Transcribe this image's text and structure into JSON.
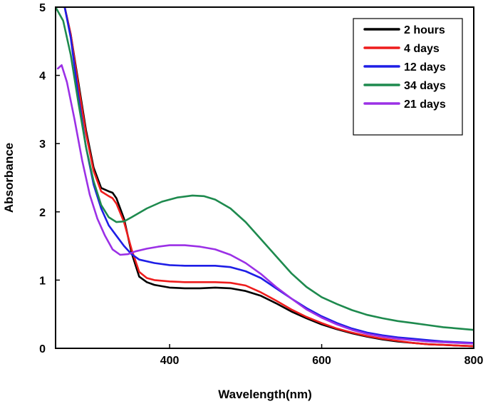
{
  "chart_data": {
    "type": "line",
    "title": "",
    "xlabel": "Wavelength(nm)",
    "ylabel": "Absorbance",
    "xlim": [
      250,
      800
    ],
    "ylim": [
      0,
      5
    ],
    "xticks": [
      400,
      600,
      800
    ],
    "yticks": [
      0,
      1,
      2,
      3,
      4,
      5
    ],
    "legend_position": "top-right",
    "series": [
      {
        "name": "2 hours",
        "color": "#000000",
        "points": [
          [
            262,
            5.0
          ],
          [
            270,
            4.6
          ],
          [
            280,
            3.9
          ],
          [
            290,
            3.2
          ],
          [
            300,
            2.65
          ],
          [
            310,
            2.35
          ],
          [
            320,
            2.3
          ],
          [
            325,
            2.28
          ],
          [
            330,
            2.2
          ],
          [
            340,
            1.9
          ],
          [
            350,
            1.4
          ],
          [
            360,
            1.05
          ],
          [
            370,
            0.97
          ],
          [
            380,
            0.93
          ],
          [
            400,
            0.89
          ],
          [
            420,
            0.88
          ],
          [
            440,
            0.88
          ],
          [
            460,
            0.89
          ],
          [
            480,
            0.88
          ],
          [
            500,
            0.84
          ],
          [
            520,
            0.77
          ],
          [
            540,
            0.66
          ],
          [
            560,
            0.54
          ],
          [
            580,
            0.44
          ],
          [
            600,
            0.35
          ],
          [
            620,
            0.28
          ],
          [
            640,
            0.22
          ],
          [
            660,
            0.17
          ],
          [
            680,
            0.13
          ],
          [
            700,
            0.1
          ],
          [
            720,
            0.08
          ],
          [
            740,
            0.06
          ],
          [
            760,
            0.05
          ],
          [
            780,
            0.04
          ],
          [
            800,
            0.03
          ]
        ]
      },
      {
        "name": "4 days",
        "color": "#ee1c1c",
        "points": [
          [
            262,
            5.0
          ],
          [
            270,
            4.6
          ],
          [
            280,
            3.85
          ],
          [
            290,
            3.15
          ],
          [
            300,
            2.6
          ],
          [
            310,
            2.3
          ],
          [
            320,
            2.23
          ],
          [
            325,
            2.2
          ],
          [
            330,
            2.12
          ],
          [
            340,
            1.85
          ],
          [
            350,
            1.45
          ],
          [
            360,
            1.12
          ],
          [
            370,
            1.03
          ],
          [
            380,
            1.0
          ],
          [
            400,
            0.98
          ],
          [
            420,
            0.97
          ],
          [
            440,
            0.97
          ],
          [
            460,
            0.97
          ],
          [
            480,
            0.96
          ],
          [
            500,
            0.92
          ],
          [
            520,
            0.82
          ],
          [
            540,
            0.7
          ],
          [
            560,
            0.57
          ],
          [
            580,
            0.46
          ],
          [
            600,
            0.37
          ],
          [
            620,
            0.29
          ],
          [
            640,
            0.23
          ],
          [
            660,
            0.18
          ],
          [
            680,
            0.14
          ],
          [
            700,
            0.11
          ],
          [
            720,
            0.08
          ],
          [
            740,
            0.06
          ],
          [
            760,
            0.05
          ],
          [
            780,
            0.04
          ],
          [
            800,
            0.03
          ]
        ]
      },
      {
        "name": "12 days",
        "color": "#1e1ee6",
        "points": [
          [
            262,
            5.0
          ],
          [
            270,
            4.55
          ],
          [
            280,
            3.7
          ],
          [
            290,
            2.95
          ],
          [
            300,
            2.4
          ],
          [
            310,
            2.05
          ],
          [
            320,
            1.8
          ],
          [
            330,
            1.65
          ],
          [
            340,
            1.5
          ],
          [
            350,
            1.38
          ],
          [
            360,
            1.3
          ],
          [
            380,
            1.25
          ],
          [
            400,
            1.22
          ],
          [
            420,
            1.21
          ],
          [
            440,
            1.21
          ],
          [
            460,
            1.21
          ],
          [
            480,
            1.19
          ],
          [
            500,
            1.13
          ],
          [
            520,
            1.03
          ],
          [
            540,
            0.88
          ],
          [
            560,
            0.73
          ],
          [
            580,
            0.59
          ],
          [
            600,
            0.47
          ],
          [
            620,
            0.37
          ],
          [
            640,
            0.29
          ],
          [
            660,
            0.23
          ],
          [
            680,
            0.19
          ],
          [
            700,
            0.16
          ],
          [
            720,
            0.14
          ],
          [
            740,
            0.12
          ],
          [
            760,
            0.1
          ],
          [
            780,
            0.09
          ],
          [
            800,
            0.08
          ]
        ]
      },
      {
        "name": "34 days",
        "color": "#1e8a4e",
        "points": [
          [
            250,
            5.0
          ],
          [
            260,
            4.8
          ],
          [
            270,
            4.3
          ],
          [
            280,
            3.6
          ],
          [
            290,
            2.95
          ],
          [
            300,
            2.45
          ],
          [
            310,
            2.1
          ],
          [
            320,
            1.92
          ],
          [
            330,
            1.85
          ],
          [
            340,
            1.86
          ],
          [
            350,
            1.92
          ],
          [
            370,
            2.05
          ],
          [
            390,
            2.15
          ],
          [
            410,
            2.21
          ],
          [
            430,
            2.24
          ],
          [
            445,
            2.23
          ],
          [
            460,
            2.18
          ],
          [
            480,
            2.05
          ],
          [
            500,
            1.85
          ],
          [
            520,
            1.6
          ],
          [
            540,
            1.35
          ],
          [
            560,
            1.1
          ],
          [
            580,
            0.9
          ],
          [
            600,
            0.75
          ],
          [
            620,
            0.65
          ],
          [
            640,
            0.56
          ],
          [
            660,
            0.49
          ],
          [
            680,
            0.44
          ],
          [
            700,
            0.4
          ],
          [
            720,
            0.37
          ],
          [
            740,
            0.34
          ],
          [
            760,
            0.31
          ],
          [
            780,
            0.29
          ],
          [
            800,
            0.27
          ]
        ]
      },
      {
        "name": "21 days",
        "color": "#9b30e6",
        "points": [
          [
            253,
            4.1
          ],
          [
            258,
            4.15
          ],
          [
            265,
            3.9
          ],
          [
            275,
            3.35
          ],
          [
            285,
            2.75
          ],
          [
            295,
            2.25
          ],
          [
            305,
            1.9
          ],
          [
            315,
            1.65
          ],
          [
            325,
            1.45
          ],
          [
            335,
            1.37
          ],
          [
            345,
            1.38
          ],
          [
            355,
            1.42
          ],
          [
            370,
            1.46
          ],
          [
            385,
            1.49
          ],
          [
            400,
            1.51
          ],
          [
            420,
            1.51
          ],
          [
            440,
            1.49
          ],
          [
            460,
            1.45
          ],
          [
            480,
            1.37
          ],
          [
            500,
            1.25
          ],
          [
            520,
            1.09
          ],
          [
            540,
            0.9
          ],
          [
            560,
            0.73
          ],
          [
            580,
            0.57
          ],
          [
            600,
            0.45
          ],
          [
            620,
            0.35
          ],
          [
            640,
            0.27
          ],
          [
            660,
            0.21
          ],
          [
            680,
            0.17
          ],
          [
            700,
            0.14
          ],
          [
            720,
            0.12
          ],
          [
            740,
            0.1
          ],
          [
            760,
            0.09
          ],
          [
            780,
            0.08
          ],
          [
            800,
            0.07
          ]
        ]
      }
    ]
  }
}
